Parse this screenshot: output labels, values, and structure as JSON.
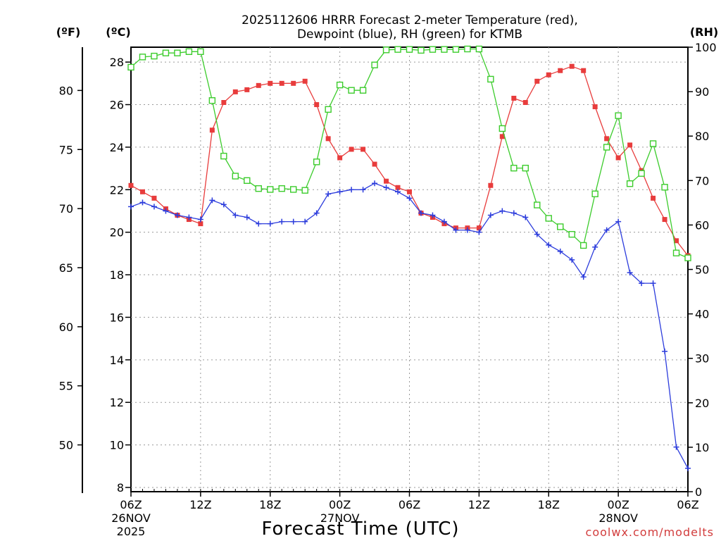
{
  "chart_data": {
    "type": "line",
    "title": [
      "2025112606 HRRR Forecast 2-meter Temperature (red),",
      "Dewpoint (blue), RH (green) for KTMB"
    ],
    "xlabel": "Forecast Time (UTC)",
    "credit": "coolwx.com/modelts",
    "units": {
      "fahrenheit": "(ºF)",
      "celsius": "(ºC)",
      "rh": "(RH)"
    },
    "x_hours_from_start": [
      0,
      1,
      2,
      3,
      4,
      5,
      6,
      7,
      8,
      9,
      10,
      11,
      12,
      13,
      14,
      15,
      16,
      17,
      18,
      19,
      20,
      21,
      22,
      23,
      24,
      25,
      26,
      27,
      28,
      29,
      30,
      31,
      32,
      33,
      34,
      35,
      36,
      37,
      38,
      39,
      40,
      41,
      42,
      43,
      44,
      45,
      46,
      47,
      48
    ],
    "x_ticks": [
      {
        "hour": 0,
        "lines": [
          "06Z",
          "26NOV",
          "2025"
        ]
      },
      {
        "hour": 6,
        "lines": [
          "12Z"
        ]
      },
      {
        "hour": 12,
        "lines": [
          "18Z"
        ]
      },
      {
        "hour": 18,
        "lines": [
          "00Z",
          "27NOV"
        ]
      },
      {
        "hour": 24,
        "lines": [
          "06Z"
        ]
      },
      {
        "hour": 30,
        "lines": [
          "12Z"
        ]
      },
      {
        "hour": 36,
        "lines": [
          "18Z"
        ]
      },
      {
        "hour": 42,
        "lines": [
          "00Z",
          "28NOV"
        ]
      },
      {
        "hour": 48,
        "lines": [
          "06Z"
        ]
      }
    ],
    "celsius_axis": {
      "range": [
        7.8,
        28.7
      ],
      "ticks": [
        8,
        10,
        12,
        14,
        16,
        18,
        20,
        22,
        24,
        26,
        28
      ]
    },
    "fahrenheit_axis": {
      "ticks": [
        50,
        55,
        60,
        65,
        70,
        75,
        80
      ]
    },
    "rh_axis": {
      "range": [
        0,
        100
      ],
      "ticks": [
        0,
        10,
        20,
        30,
        40,
        50,
        60,
        70,
        80,
        90,
        100
      ]
    },
    "series": [
      {
        "name": "Temperature",
        "axis": "celsius",
        "color": "#e83c3c",
        "marker": "filled-square",
        "values": [
          22.2,
          21.9,
          21.6,
          21.1,
          20.8,
          20.6,
          20.4,
          24.8,
          26.1,
          26.6,
          26.7,
          26.9,
          27.0,
          27.0,
          27.0,
          27.1,
          26.0,
          24.4,
          23.5,
          23.9,
          23.9,
          23.2,
          22.4,
          22.1,
          21.9,
          20.9,
          20.7,
          20.4,
          20.2,
          20.2,
          20.2,
          22.2,
          24.5,
          26.3,
          26.1,
          27.1,
          27.4,
          27.6,
          27.8,
          27.6,
          25.9,
          24.4,
          23.5,
          24.1,
          22.9,
          21.6,
          20.6,
          19.6,
          18.9
        ]
      },
      {
        "name": "Dewpoint",
        "axis": "celsius",
        "color": "#2c3cdc",
        "marker": "plus",
        "values": [
          21.2,
          21.4,
          21.2,
          21.0,
          20.8,
          20.7,
          20.6,
          21.5,
          21.3,
          20.8,
          20.7,
          20.4,
          20.4,
          20.5,
          20.5,
          20.5,
          20.9,
          21.8,
          21.9,
          22.0,
          22.0,
          22.3,
          22.1,
          21.9,
          21.6,
          20.9,
          20.8,
          20.5,
          20.1,
          20.1,
          20.0,
          20.8,
          21.0,
          20.9,
          20.7,
          19.9,
          19.4,
          19.1,
          18.7,
          17.9,
          19.3,
          20.1,
          20.5,
          18.1,
          17.6,
          17.6,
          14.4,
          9.9,
          8.9
        ]
      },
      {
        "name": "RH",
        "axis": "rh",
        "color": "#3ccc2c",
        "marker": "open-square",
        "values": [
          95.5,
          97.8,
          98.0,
          98.7,
          98.7,
          99.0,
          99.0,
          88.0,
          75.5,
          71.0,
          70.0,
          68.2,
          68.0,
          68.2,
          68.0,
          67.8,
          74.2,
          86.0,
          91.5,
          90.3,
          90.3,
          96.0,
          99.4,
          99.5,
          99.5,
          99.3,
          99.5,
          99.5,
          99.5,
          99.6,
          99.6,
          92.8,
          81.7,
          72.8,
          72.8,
          64.5,
          61.5,
          59.6,
          57.9,
          55.4,
          67.0,
          77.5,
          84.6,
          69.3,
          71.6,
          78.3,
          68.5,
          53.7,
          52.6
        ]
      }
    ]
  }
}
